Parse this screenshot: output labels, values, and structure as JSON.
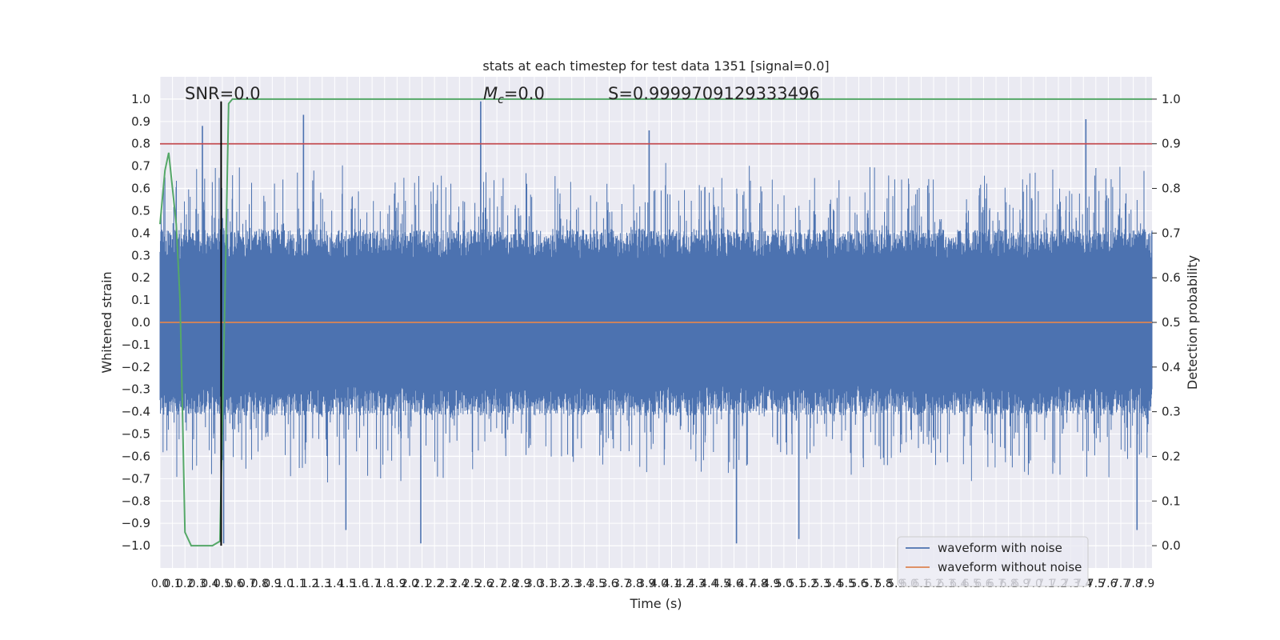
{
  "chart_data": {
    "type": "line",
    "title": "stats at each timestep for test data 1351 [signal=0.0]",
    "xlabel": "Time (s)",
    "ylabel": "Whitened strain",
    "y2label": "Detection probability",
    "xlim": [
      0.0,
      7.95
    ],
    "ylim": [
      -1.1,
      1.1
    ],
    "y2lim": [
      -0.05,
      1.05
    ],
    "grid": true,
    "legend_position": "lower-right",
    "x_ticks": [
      "0.0",
      "0.1",
      "0.2",
      "0.3",
      "0.4",
      "0.5",
      "0.6",
      "0.7",
      "0.8",
      "0.9",
      "1.0",
      "1.1",
      "1.2",
      "1.3",
      "1.4",
      "1.5",
      "1.6",
      "1.7",
      "1.8",
      "1.9",
      "2.0",
      "2.1",
      "2.2",
      "2.3",
      "2.4",
      "2.5",
      "2.6",
      "2.7",
      "2.8",
      "2.9",
      "3.0",
      "3.1",
      "3.2",
      "3.3",
      "3.4",
      "3.5",
      "3.6",
      "3.7",
      "3.8",
      "3.9",
      "4.0",
      "4.1",
      "4.2",
      "4.3",
      "4.4",
      "4.5",
      "4.6",
      "4.7",
      "4.8",
      "4.9",
      "5.0",
      "5.1",
      "5.2",
      "5.3",
      "5.4",
      "5.5",
      "5.6",
      "5.7",
      "5.8",
      "5.9",
      "6.0",
      "6.1",
      "6.2",
      "6.3",
      "6.4",
      "6.5",
      "6.6",
      "6.7",
      "6.8",
      "6.9",
      "7.0",
      "7.1",
      "7.2",
      "7.3",
      "7.4",
      "7.5",
      "7.6",
      "7.7",
      "7.8",
      "7.9"
    ],
    "y_ticks": [
      "1.0",
      "0.9",
      "0.8",
      "0.7",
      "0.6",
      "0.5",
      "0.4",
      "0.3",
      "0.2",
      "0.1",
      "0.0",
      "−0.1",
      "−0.2",
      "−0.3",
      "−0.4",
      "−0.5",
      "−0.6",
      "−0.7",
      "−0.8",
      "−0.9",
      "−1.0"
    ],
    "y2_ticks": [
      "1.0",
      "0.9",
      "0.8",
      "0.7",
      "0.6",
      "0.5",
      "0.4",
      "0.3",
      "0.2",
      "0.1",
      "0.0"
    ],
    "annotations": {
      "snr": "SNR=0.0",
      "mc_symbol": "M",
      "mc_sub": "c",
      "mc_value": "=0.0",
      "s": "S=0.9999709129333496"
    },
    "series": [
      {
        "name": "waveform with noise",
        "color": "#4c72b0",
        "style": "dense noise envelope",
        "typical_abs_amplitude": 0.38,
        "peaks": [
          {
            "x": 2.57,
            "y": 0.99
          },
          {
            "x": 0.34,
            "y": 0.88
          },
          {
            "x": 1.15,
            "y": 0.93
          },
          {
            "x": 7.42,
            "y": 0.91
          },
          {
            "x": 3.92,
            "y": 0.86
          },
          {
            "x": 0.51,
            "y": -0.99
          },
          {
            "x": 2.09,
            "y": -0.99
          },
          {
            "x": 4.62,
            "y": -0.99
          },
          {
            "x": 5.12,
            "y": -0.97
          },
          {
            "x": 7.83,
            "y": -0.93
          },
          {
            "x": 1.49,
            "y": -0.93
          }
        ]
      },
      {
        "name": "waveform without noise",
        "color": "#dd8452",
        "x": [
          0.0,
          7.95
        ],
        "y": [
          0.0,
          0.0
        ]
      },
      {
        "name": "detection probability",
        "color": "#55a868",
        "axis": "right",
        "x": [
          0.0,
          0.04,
          0.07,
          0.1,
          0.13,
          0.16,
          0.18,
          0.2,
          0.25,
          0.3,
          0.35,
          0.42,
          0.48,
          0.52,
          0.55,
          0.58,
          1.0,
          2.0,
          3.0,
          4.0,
          5.0,
          6.0,
          7.0,
          7.95
        ],
        "y": [
          0.72,
          0.84,
          0.88,
          0.8,
          0.72,
          0.55,
          0.3,
          0.03,
          0.0,
          0.0,
          0.0,
          0.0,
          0.01,
          0.55,
          0.99,
          1.0,
          1.0,
          1.0,
          1.0,
          1.0,
          1.0,
          1.0,
          1.0,
          1.0
        ]
      }
    ],
    "reference_lines": [
      {
        "name": "threshold",
        "axis": "right",
        "value": 0.9,
        "color": "#c44e52"
      },
      {
        "name": "marker",
        "orientation": "vertical",
        "x": 0.49,
        "y_from": -1.0,
        "y_to": 0.99,
        "color": "#000000"
      }
    ],
    "legend": [
      "waveform with noise",
      "waveform without noise"
    ]
  }
}
